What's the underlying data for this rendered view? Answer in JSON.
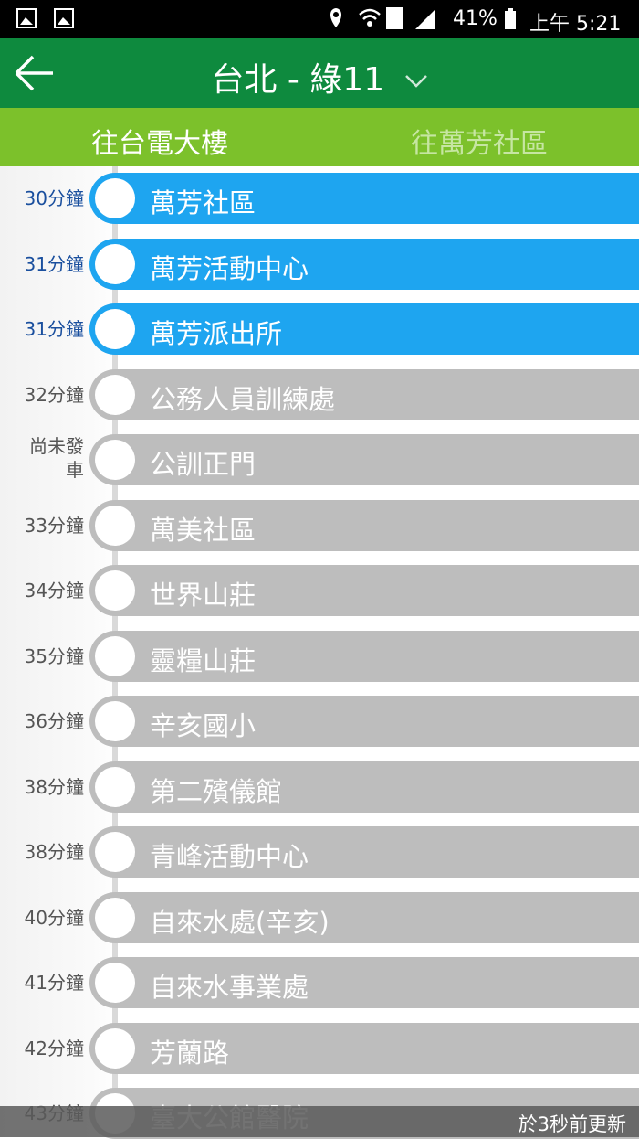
{
  "status_bar": {
    "battery": "41%",
    "clock": "上午 5:21"
  },
  "header": {
    "title": "台北 - 綠11"
  },
  "tabs": [
    {
      "label": "往台電大樓",
      "selected": true
    },
    {
      "label": "往萬芳社區",
      "selected": false
    }
  ],
  "stops": [
    {
      "time": "30分鐘",
      "name": "萬芳社區",
      "highlighted": true
    },
    {
      "time": "31分鐘",
      "name": "萬芳活動中心",
      "highlighted": true
    },
    {
      "time": "31分鐘",
      "name": "萬芳派出所",
      "highlighted": true
    },
    {
      "time": "32分鐘",
      "name": "公務人員訓練處",
      "highlighted": false
    },
    {
      "time": "尚未發車",
      "name": "公訓正門",
      "highlighted": false
    },
    {
      "time": "33分鐘",
      "name": "萬美社區",
      "highlighted": false
    },
    {
      "time": "34分鐘",
      "name": "世界山莊",
      "highlighted": false
    },
    {
      "time": "35分鐘",
      "name": "靈糧山莊",
      "highlighted": false
    },
    {
      "time": "36分鐘",
      "name": "辛亥國小",
      "highlighted": false
    },
    {
      "time": "38分鐘",
      "name": "第二殯儀館",
      "highlighted": false
    },
    {
      "time": "38分鐘",
      "name": "青峰活動中心",
      "highlighted": false
    },
    {
      "time": "40分鐘",
      "name": "自來水處(辛亥)",
      "highlighted": false
    },
    {
      "time": "41分鐘",
      "name": "自來水事業處",
      "highlighted": false
    },
    {
      "time": "42分鐘",
      "name": "芳蘭路",
      "highlighted": false
    },
    {
      "time": "43分鐘",
      "name": "臺大公館醫院",
      "highlighted": false
    }
  ],
  "footer": {
    "updated": "於3秒前更新"
  }
}
